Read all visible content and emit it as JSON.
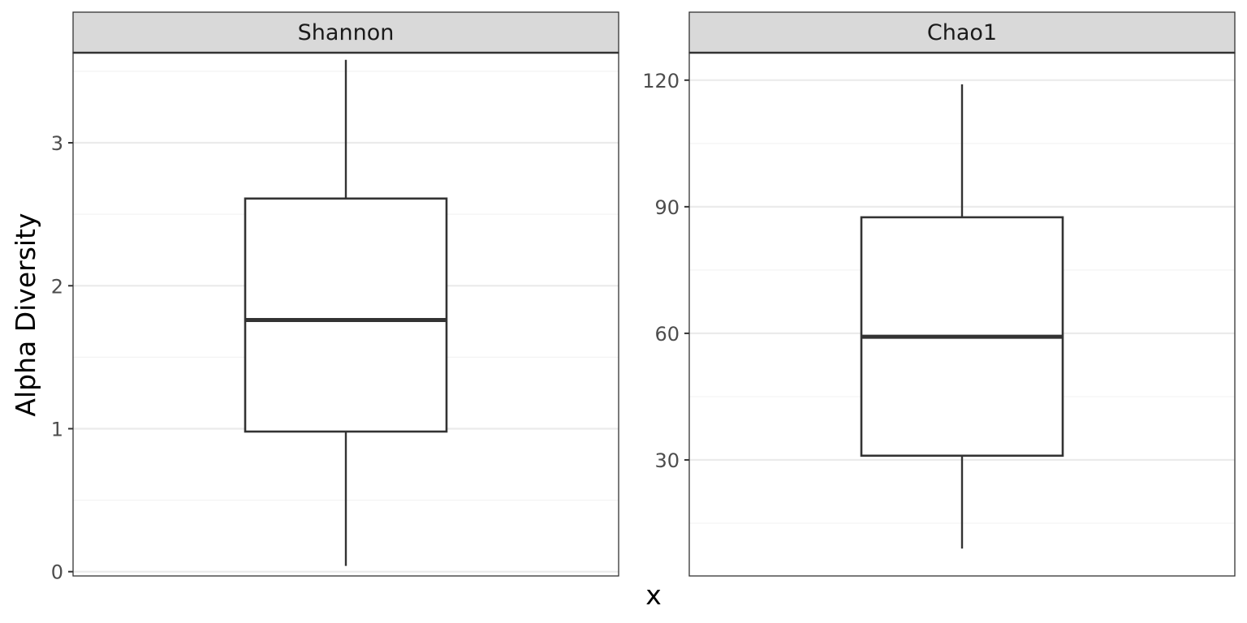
{
  "chart_data": {
    "type": "boxplot",
    "ylabel": "Alpha Diversity",
    "xlabel": "x",
    "grid": true,
    "colors": {
      "box_stroke": "#333333",
      "strip_fill": "#d9d9d9",
      "panel_border": "#333333",
      "grid_major": "#ebebeb",
      "grid_minor": "#f3f3f3"
    },
    "panels": [
      {
        "title": "Shannon",
        "ylim": [
          -0.03,
          3.63
        ],
        "ticks": [
          0,
          1,
          2,
          3
        ],
        "tick_labels": [
          "0",
          "1",
          "2",
          "3"
        ],
        "minor_ticks": [
          0.5,
          1.5,
          2.5,
          3.5
        ],
        "box": {
          "min": 0.04,
          "q1": 0.98,
          "median": 1.76,
          "q3": 2.61,
          "max": 3.58
        }
      },
      {
        "title": "Chao1",
        "ylim": [
          2.5,
          126.5
        ],
        "ticks": [
          30,
          60,
          90,
          120
        ],
        "tick_labels": [
          "30",
          "60",
          "90",
          "120"
        ],
        "minor_ticks": [
          15,
          45,
          75,
          105
        ],
        "box": {
          "min": 9,
          "q1": 31,
          "median": 59.2,
          "q3": 87.5,
          "max": 119
        }
      }
    ]
  }
}
